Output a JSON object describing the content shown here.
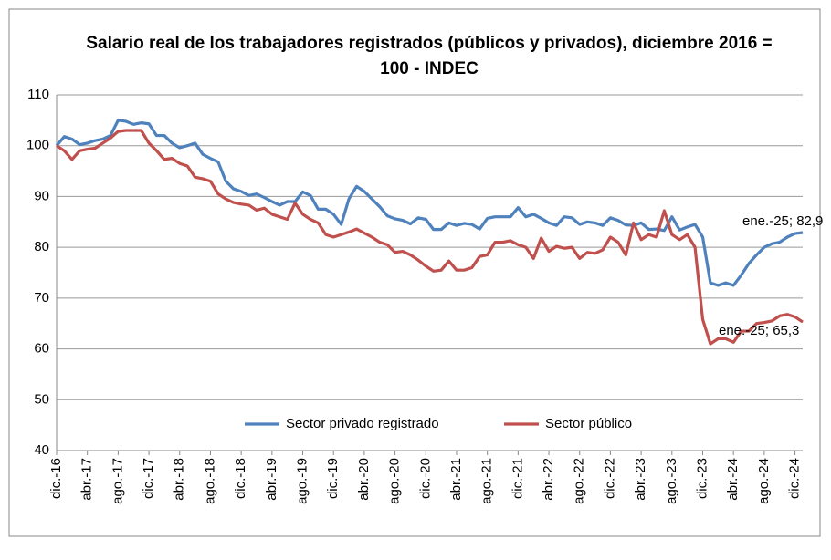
{
  "chart_data": {
    "type": "line",
    "title": "Salario real de los trabajadores registrados (públicos y privados), diciembre 2016 =",
    "subtitle": "100 - INDEC",
    "categories": [
      "dic.-16",
      null,
      null,
      null,
      "abr.-17",
      null,
      null,
      null,
      "ago.-17",
      null,
      null,
      null,
      "dic.-17",
      null,
      null,
      null,
      "abr.-18",
      null,
      null,
      null,
      "ago.-18",
      null,
      null,
      null,
      "dic.-18",
      null,
      null,
      null,
      "abr.-19",
      null,
      null,
      null,
      "ago.-19",
      null,
      null,
      null,
      "dic.-19",
      null,
      null,
      null,
      "abr.-20",
      null,
      null,
      null,
      "ago.-20",
      null,
      null,
      null,
      "dic.-20",
      null,
      null,
      null,
      "abr.-21",
      null,
      null,
      null,
      "ago.-21",
      null,
      null,
      null,
      "dic.-21",
      null,
      null,
      null,
      "abr.-22",
      null,
      null,
      null,
      "ago.-22",
      null,
      null,
      null,
      "dic.-22",
      null,
      null,
      null,
      "abr.-23",
      null,
      null,
      null,
      "ago.-23",
      null,
      null,
      null,
      "dic.-23",
      null,
      null,
      null,
      "abr.-24",
      null,
      null,
      null,
      "ago.-24",
      null,
      null,
      null,
      "dic.-24",
      null
    ],
    "series": [
      {
        "name": "Sector privado registrado",
        "color": "#4f81bd",
        "values": [
          100,
          101.8,
          101.3,
          100.2,
          100.5,
          101,
          101.3,
          102,
          105,
          104.8,
          104.2,
          104.5,
          104.3,
          102,
          102,
          100.5,
          99.6,
          100,
          100.5,
          98.3,
          97.5,
          96.8,
          93,
          91.5,
          91,
          90.2,
          90.5,
          89.8,
          89,
          88.3,
          89,
          89,
          90.9,
          90.2,
          87.5,
          87.5,
          86.5,
          84.5,
          89.5,
          92,
          91,
          89.5,
          88,
          86.2,
          85.6,
          85.3,
          84.6,
          85.8,
          85.5,
          83.5,
          83.5,
          84.8,
          84.3,
          84.7,
          84.5,
          83.6,
          85.7,
          86,
          86,
          86,
          87.8,
          86,
          86.5,
          85.7,
          84.8,
          84.3,
          86,
          85.8,
          84.5,
          85,
          84.8,
          84.3,
          85.8,
          85.3,
          84.4,
          84.3,
          84.8,
          83.5,
          83.6,
          83.3,
          86,
          83.4,
          84,
          84.5,
          82,
          73,
          72.5,
          73,
          72.5,
          74.5,
          76.8,
          78.5,
          80,
          80.7,
          81,
          82,
          82.7,
          82.9
        ]
      },
      {
        "name": "Sector público",
        "color": "#c0504d",
        "values": [
          100,
          99,
          97.3,
          99,
          99.3,
          99.5,
          100.5,
          101.5,
          102.8,
          103,
          103,
          103,
          100.5,
          99,
          97.3,
          97.5,
          96.5,
          96,
          93.8,
          93.5,
          93,
          90.5,
          89.5,
          88.8,
          88.5,
          88.3,
          87.3,
          87.7,
          86.5,
          86,
          85.5,
          88.7,
          86.5,
          85.5,
          84.8,
          82.5,
          82,
          82.5,
          83,
          83.6,
          82.8,
          82,
          81,
          80.5,
          79,
          79.2,
          78.5,
          77.5,
          76.3,
          75.3,
          75.5,
          77.3,
          75.5,
          75.5,
          76,
          78.2,
          78.5,
          81,
          81,
          81.3,
          80.5,
          80,
          77.8,
          81.8,
          79.2,
          80.2,
          79.8,
          80,
          77.8,
          79,
          78.8,
          79.5,
          82,
          81,
          78.5,
          84.8,
          81.5,
          82.5,
          82,
          87.2,
          82.5,
          81.5,
          82.5,
          80,
          65.8,
          61,
          62,
          62,
          61.3,
          63.5,
          63.5,
          65,
          65.2,
          65.5,
          66.5,
          66.8,
          66.3,
          65.3
        ]
      }
    ],
    "annotations": [
      "ene.-25; 82,9",
      "ene.-25; 65,3"
    ],
    "ylim": [
      40,
      110
    ],
    "yticks": [
      40,
      50,
      60,
      70,
      80,
      90,
      100,
      110
    ],
    "grid": true,
    "legend": "bottom"
  }
}
